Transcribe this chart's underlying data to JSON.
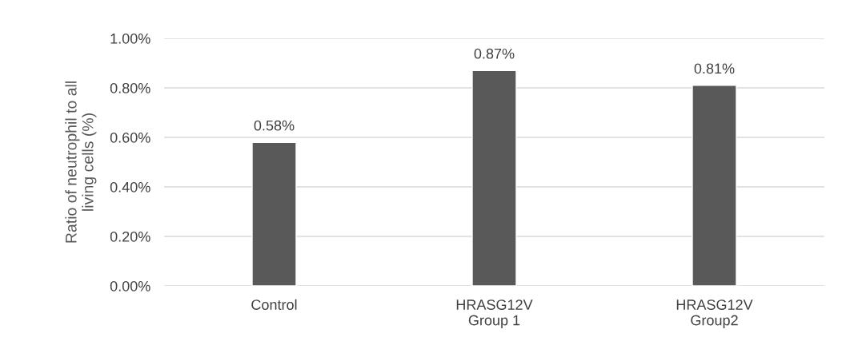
{
  "chart_data": {
    "type": "bar",
    "ylabel": "Ratio of neutrophil to all\nliving cells (%)",
    "categories": [
      "Control",
      "HRASG12V\nGroup 1",
      "HRASG12V\nGroup2"
    ],
    "values": [
      0.58,
      0.87,
      0.81
    ],
    "value_labels": [
      "0.58%",
      "0.87%",
      "0.81%"
    ],
    "color": "#595959",
    "ylim": [
      0,
      1
    ],
    "yticks": [
      {
        "value": 0,
        "label": "0.00%"
      },
      {
        "value": 0.2,
        "label": "0.20%"
      },
      {
        "value": 0.4,
        "label": "0.40%"
      },
      {
        "value": 0.6,
        "label": "0.60%"
      },
      {
        "value": 0.8,
        "label": "0.80%"
      },
      {
        "value": 1,
        "label": "1.00%"
      }
    ],
    "grid": "y",
    "legend": false
  }
}
